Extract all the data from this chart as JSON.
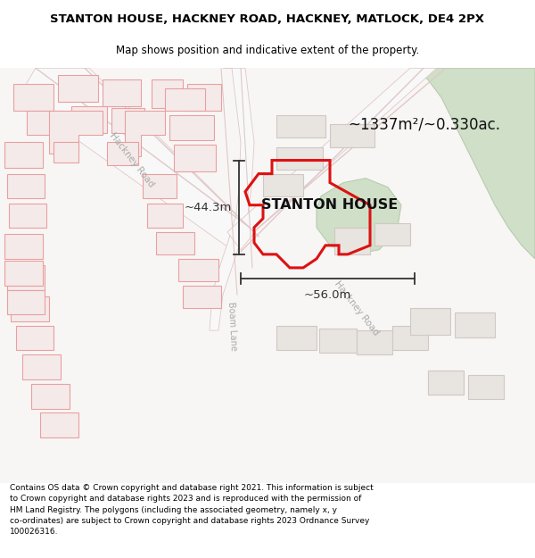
{
  "title": "STANTON HOUSE, HACKNEY ROAD, HACKNEY, MATLOCK, DE4 2PX",
  "subtitle": "Map shows position and indicative extent of the property.",
  "footer": "Contains OS data © Crown copyright and database right 2021. This information is subject to Crown copyright and database rights 2023 and is reproduced with the permission of\nHM Land Registry. The polygons (including the associated geometry, namely x, y co-ordinates) are subject to Crown copyright and database rights 2023 Ordnance Survey\n100026316.",
  "bg_color": "#f8f6f4",
  "road_outline_color": "#e0c8c8",
  "building_face": "#e8e4e0",
  "building_edge": "#d0c8c4",
  "red_outline": "#e8a0a0",
  "green_face": "#cfdfc8",
  "green_edge": "#b8ccb0",
  "property_edge": "#dd1111",
  "property_lw": 2.2,
  "dim_color": "#333333",
  "area_text": "~1337m²/~0.330ac.",
  "label_text": "STANTON HOUSE",
  "dim_w": "~56.0m",
  "dim_h": "~44.3m",
  "title_fontsize": 9.5,
  "subtitle_fontsize": 8.5,
  "footer_fontsize": 6.5,
  "hackney_road_label": "Hackney Road",
  "boam_lane_label": "Boam Lane",
  "hackney_road2_label": "Hackney Road"
}
